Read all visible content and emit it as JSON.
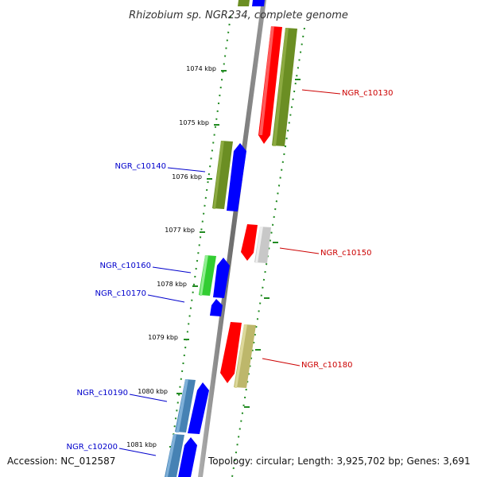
{
  "title": "Rhizobium sp. NGR234, complete genome",
  "footer": {
    "accession": "Accession: NC_012587",
    "summary": "Topology: circular; Length: 3,925,702 bp; Genes: 3,691"
  },
  "colors": {
    "dark_green": "#6b8e23",
    "blue": "#0000ff",
    "red": "#ff0000",
    "light_gray": "#c8c8c8",
    "light_green": "#32cd32",
    "khaki": "#bdb76b",
    "steel_blue": "#4682b4",
    "backbone": "#808080",
    "tick_green": "#228b22",
    "label_blue": "#0000cc",
    "label_red": "#cc0000"
  },
  "ticks": [
    {
      "label": "1074 kbp"
    },
    {
      "label": "1075 kbp"
    },
    {
      "label": "1076 kbp"
    },
    {
      "label": "1077 kbp"
    },
    {
      "label": "1078 kbp"
    },
    {
      "label": "1079 kbp"
    },
    {
      "label": "1080 kbp"
    },
    {
      "label": "1081 kbp"
    }
  ],
  "gene_labels": [
    {
      "text": "NGR_c10130",
      "strand": "minus"
    },
    {
      "text": "NGR_c10140",
      "strand": "plus"
    },
    {
      "text": "NGR_c10150",
      "strand": "minus"
    },
    {
      "text": "NGR_c10160",
      "strand": "plus"
    },
    {
      "text": "NGR_c10170",
      "strand": "plus"
    },
    {
      "text": "NGR_c10180",
      "strand": "minus"
    },
    {
      "text": "NGR_c10190",
      "strand": "plus"
    },
    {
      "text": "NGR_c10200",
      "strand": "plus"
    }
  ]
}
